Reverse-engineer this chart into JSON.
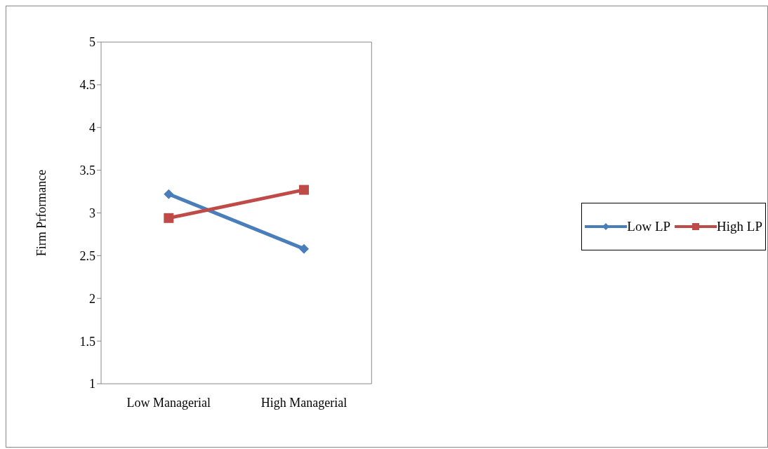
{
  "chart_data": {
    "type": "line",
    "ylabel": "Firm Prformance",
    "categories": [
      "Low Managerial",
      "High Managerial"
    ],
    "series": [
      {
        "name": "Low LP",
        "color": "#4a7ebb",
        "marker": "diamond",
        "values": [
          3.22,
          2.58
        ]
      },
      {
        "name": "High LP",
        "color": "#be4b48",
        "marker": "square",
        "values": [
          2.94,
          3.27
        ]
      }
    ],
    "ylim": [
      1,
      5
    ],
    "yticks": [
      1,
      1.5,
      2,
      2.5,
      3,
      3.5,
      4,
      4.5,
      5
    ],
    "grid": false,
    "legend": "right"
  }
}
